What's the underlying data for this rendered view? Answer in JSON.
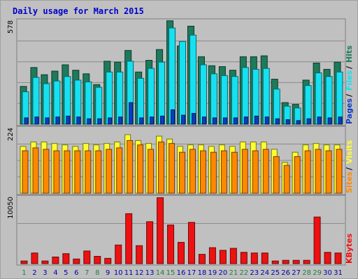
{
  "title": "Daily usage for March 2015",
  "colors": {
    "hits": "#1e7a5a",
    "files": "#17e0f0",
    "pages": "#0a3cc8",
    "visits": "#ffff33",
    "sites": "#ff8800",
    "kbytes": "#ee1111",
    "weekend_day": "#208040",
    "weekday_day": "#0000aa"
  },
  "chart_data": [
    {
      "type": "bar",
      "panel": "hits-files-pages",
      "ymax_label": "578",
      "ylim": [
        0,
        578
      ],
      "legend_labels": [
        {
          "text": "Pages",
          "color": "#0a3cc8"
        },
        {
          "text": "Files",
          "color": "#17e0f0"
        },
        {
          "text": "Hits",
          "color": "#1e7a5a"
        }
      ],
      "categories": [
        "1",
        "2",
        "3",
        "4",
        "5",
        "6",
        "7",
        "8",
        "9",
        "10",
        "11",
        "12",
        "13",
        "14",
        "15",
        "16",
        "17",
        "18",
        "19",
        "20",
        "21",
        "22",
        "23",
        "24",
        "25",
        "26",
        "27",
        "28",
        "29",
        "30",
        "31"
      ],
      "series": [
        {
          "name": "Hits",
          "color": "#1e7a5a",
          "values": [
            210,
            315,
            275,
            295,
            330,
            300,
            280,
            220,
            350,
            345,
            410,
            290,
            355,
            415,
            575,
            435,
            545,
            375,
            325,
            320,
            300,
            375,
            375,
            380,
            250,
            120,
            110,
            245,
            340,
            305,
            345
          ]
        },
        {
          "name": "Files",
          "color": "#17e0f0",
          "values": [
            180,
            260,
            225,
            240,
            265,
            245,
            235,
            205,
            290,
            290,
            350,
            255,
            310,
            345,
            535,
            460,
            495,
            330,
            280,
            270,
            265,
            315,
            305,
            310,
            195,
            100,
            90,
            215,
            285,
            265,
            290
          ]
        },
        {
          "name": "Pages",
          "color": "#0a3cc8",
          "values": [
            35,
            40,
            35,
            40,
            45,
            40,
            30,
            30,
            35,
            40,
            120,
            35,
            40,
            45,
            80,
            50,
            60,
            40,
            35,
            35,
            35,
            40,
            45,
            40,
            30,
            25,
            20,
            30,
            40,
            35,
            40
          ]
        }
      ]
    },
    {
      "type": "bar",
      "panel": "visits-sites",
      "ymax_label": "224",
      "ylim": [
        0,
        224
      ],
      "legend_labels": [
        {
          "text": "Sites",
          "color": "#ff8800"
        },
        {
          "text": "Visits",
          "color": "#ffff33"
        }
      ],
      "categories": [
        "1",
        "2",
        "3",
        "4",
        "5",
        "6",
        "7",
        "8",
        "9",
        "10",
        "11",
        "12",
        "13",
        "14",
        "15",
        "16",
        "17",
        "18",
        "19",
        "20",
        "21",
        "22",
        "23",
        "24",
        "25",
        "26",
        "27",
        "28",
        "29",
        "30",
        "31"
      ],
      "series": [
        {
          "name": "Visits",
          "color": "#ffff33",
          "values": [
            160,
            175,
            175,
            170,
            165,
            160,
            170,
            165,
            170,
            175,
            200,
            180,
            170,
            195,
            185,
            160,
            165,
            165,
            160,
            165,
            160,
            175,
            175,
            175,
            150,
            105,
            140,
            165,
            170,
            165,
            165
          ]
        },
        {
          "name": "Sites",
          "color": "#ff8800",
          "values": [
            145,
            155,
            150,
            145,
            145,
            145,
            145,
            145,
            150,
            155,
            180,
            165,
            150,
            175,
            170,
            140,
            150,
            145,
            140,
            145,
            140,
            150,
            145,
            150,
            125,
            95,
            125,
            145,
            150,
            145,
            150
          ]
        }
      ]
    },
    {
      "type": "bar",
      "panel": "kbytes",
      "ymax_label": "10050",
      "ylim": [
        0,
        10050
      ],
      "legend_labels": [
        {
          "text": "KBytes",
          "color": "#ee1111"
        }
      ],
      "categories": [
        "1",
        "2",
        "3",
        "4",
        "5",
        "6",
        "7",
        "8",
        "9",
        "10",
        "11",
        "12",
        "13",
        "14",
        "15",
        "16",
        "17",
        "18",
        "19",
        "20",
        "21",
        "22",
        "23",
        "24",
        "25",
        "26",
        "27",
        "28",
        "29",
        "30",
        "31"
      ],
      "series": [
        {
          "name": "KBytes",
          "color": "#ee1111",
          "values": [
            400,
            1600,
            400,
            1000,
            1500,
            700,
            1900,
            1100,
            800,
            2800,
            7500,
            2700,
            6300,
            9900,
            5800,
            3200,
            6200,
            1400,
            2400,
            2000,
            2300,
            1700,
            1600,
            1600,
            400,
            500,
            500,
            500,
            7000,
            1700,
            1600
          ]
        }
      ]
    }
  ],
  "x_axis": {
    "labels": [
      {
        "text": "1",
        "weekend": true
      },
      {
        "text": "2",
        "weekend": false
      },
      {
        "text": "3",
        "weekend": false
      },
      {
        "text": "4",
        "weekend": false
      },
      {
        "text": "5",
        "weekend": false
      },
      {
        "text": "6",
        "weekend": false
      },
      {
        "text": "7",
        "weekend": true
      },
      {
        "text": "8",
        "weekend": true
      },
      {
        "text": "9",
        "weekend": false
      },
      {
        "text": "10",
        "weekend": false
      },
      {
        "text": "11",
        "weekend": false
      },
      {
        "text": "12",
        "weekend": false
      },
      {
        "text": "13",
        "weekend": false
      },
      {
        "text": "14",
        "weekend": true
      },
      {
        "text": "15",
        "weekend": true
      },
      {
        "text": "16",
        "weekend": false
      },
      {
        "text": "17",
        "weekend": false
      },
      {
        "text": "18",
        "weekend": false
      },
      {
        "text": "19",
        "weekend": false
      },
      {
        "text": "20",
        "weekend": false
      },
      {
        "text": "21",
        "weekend": true
      },
      {
        "text": "22",
        "weekend": true
      },
      {
        "text": "23",
        "weekend": false
      },
      {
        "text": "24",
        "weekend": false
      },
      {
        "text": "25",
        "weekend": false
      },
      {
        "text": "26",
        "weekend": false
      },
      {
        "text": "27",
        "weekend": false
      },
      {
        "text": "28",
        "weekend": true
      },
      {
        "text": "29",
        "weekend": true
      },
      {
        "text": "30",
        "weekend": false
      },
      {
        "text": "31",
        "weekend": false
      }
    ]
  }
}
